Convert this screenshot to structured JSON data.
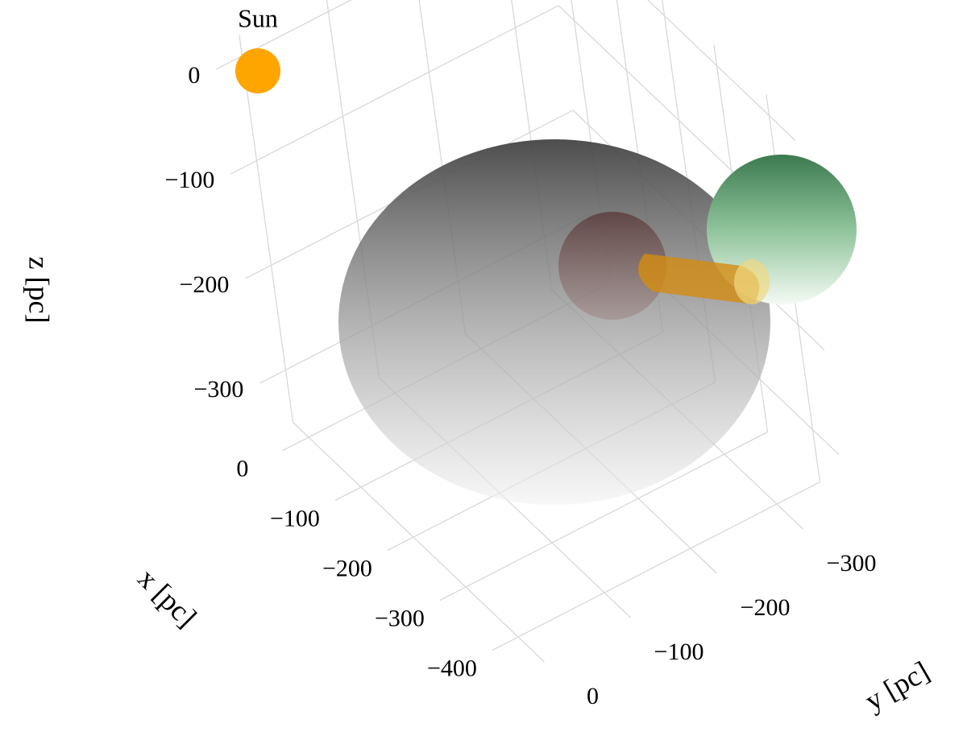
{
  "chart_data": {
    "type": "scatter3d",
    "xlabel": "x [pc]",
    "ylabel": "y [pc]",
    "zlabel": "z [pc]",
    "xlim": [
      -450,
      30
    ],
    "ylim": [
      -350,
      30
    ],
    "zlim": [
      -350,
      20
    ],
    "xticks": [
      0,
      {
        "value": -100,
        "label": "−100"
      },
      {
        "value": -200,
        "label": "−200"
      },
      {
        "value": -300,
        "label": "−300"
      },
      {
        "value": -400,
        "label": "−400"
      }
    ],
    "yticks": [
      0,
      {
        "value": -100,
        "label": "−100"
      },
      {
        "value": -200,
        "label": "−200"
      },
      {
        "value": -300,
        "label": "−300"
      }
    ],
    "zticks": [
      0,
      {
        "value": -100,
        "label": "−100"
      },
      {
        "value": -200,
        "label": "−200"
      },
      {
        "value": -300,
        "label": "−300"
      }
    ],
    "series": [
      {
        "name": "Sun",
        "color": "#ffa500",
        "x": [
          0
        ],
        "y": [
          0
        ],
        "z": [
          0
        ]
      }
    ],
    "grid": true
  }
}
